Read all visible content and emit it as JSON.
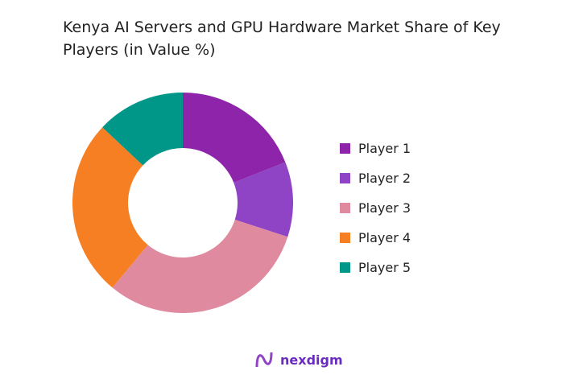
{
  "chart_data": {
    "type": "pie",
    "donut": true,
    "title": "Kenya AI Servers and GPU Hardware Market Share of Key Players (in Value %)",
    "categories": [
      "Player 1",
      "Player 2",
      "Player 3",
      "Player 4",
      "Player 5"
    ],
    "values": [
      19,
      11,
      31,
      26,
      13
    ],
    "colors": [
      "#8e24aa",
      "#8e44c4",
      "#e08aa0",
      "#f57f22",
      "#009688"
    ],
    "legend_position": "right"
  },
  "brand": {
    "name": "nexdigm"
  }
}
